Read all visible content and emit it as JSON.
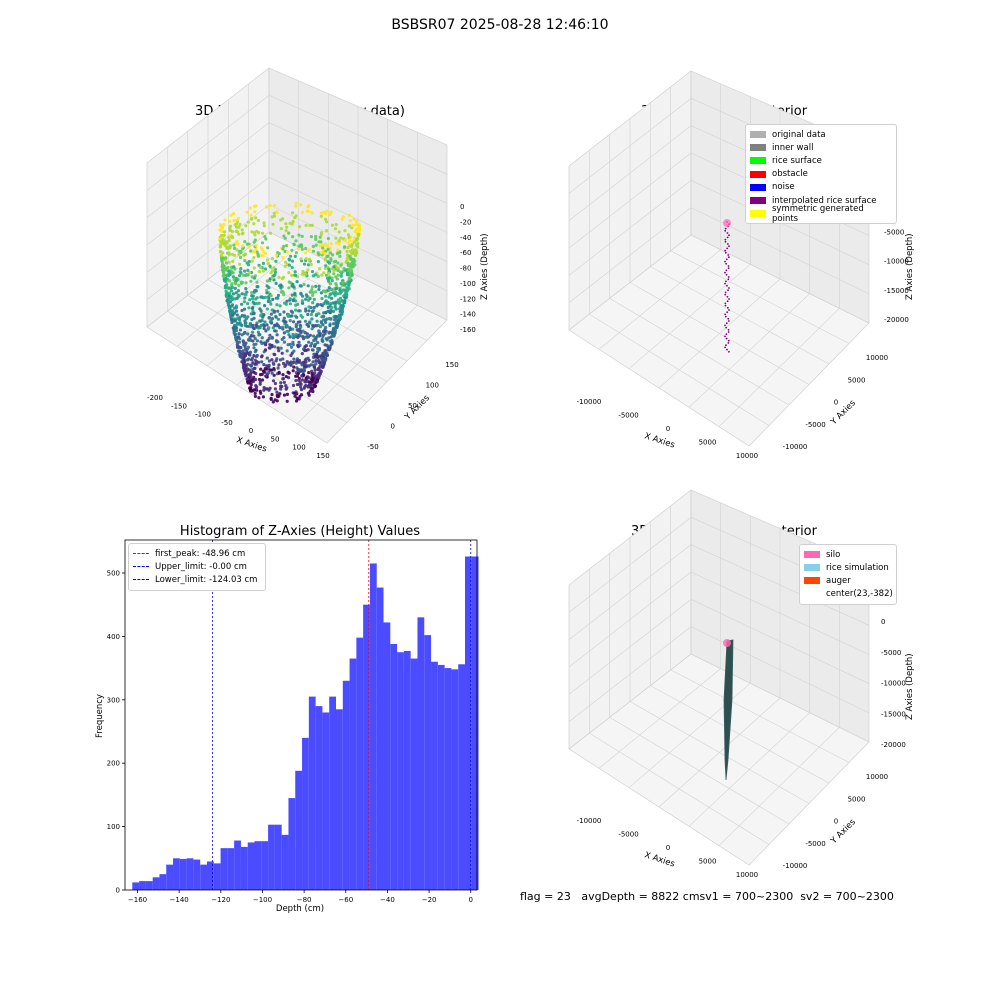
{
  "suptitle": "BSBSR07 2025-08-28 12:46:10",
  "panels": {
    "raw": {
      "title": "3D Plot of Silo Interior(row data)",
      "x_label": "X Axies",
      "y_label": "Y Axies",
      "z_label": "Z Axies (Depth)",
      "x_ticks": [
        "-200",
        "-150",
        "-100",
        "-50",
        "0",
        "50",
        "100",
        "150"
      ],
      "y_ticks": [
        "150",
        "100",
        "50",
        "0",
        "-50"
      ],
      "z_ticks": [
        "0",
        "-20",
        "-40",
        "-60",
        "-80",
        "-100",
        "-120",
        "-140",
        "-160"
      ]
    },
    "classify": {
      "title": "3D classify of Silo Interior",
      "x_label": "X Axies",
      "y_label": "Y Axies",
      "z_label": "Z Axies (Depth)",
      "x_ticks": [
        "-10000",
        "-5000",
        "0",
        "5000",
        "10000"
      ],
      "y_ticks": [
        "10000",
        "5000",
        "0",
        "-5000",
        "-10000"
      ],
      "z_ticks": [
        "0",
        "-5000",
        "-10000",
        "-15000",
        "-20000"
      ],
      "legend": [
        {
          "label": "original data",
          "color": "#b0b0b0"
        },
        {
          "label": "inner wall",
          "color": "#808080"
        },
        {
          "label": "rice surface",
          "color": "#00ff00"
        },
        {
          "label": "obstacle",
          "color": "#ff0000"
        },
        {
          "label": "noise",
          "color": "#0000ff"
        },
        {
          "label": "interpolated rice surface",
          "color": "#800080"
        },
        {
          "label": "symmetric generated points",
          "color": "#ffff00"
        }
      ]
    },
    "simulation": {
      "title": "3D simulation of Silo Interior",
      "x_label": "X Axies",
      "y_label": "Y Axies",
      "z_label": "Z Axies (Depth)",
      "x_ticks": [
        "-10000",
        "-5000",
        "0",
        "5000",
        "10000"
      ],
      "y_ticks": [
        "10000",
        "5000",
        "0",
        "-5000",
        "-10000"
      ],
      "z_ticks": [
        "0",
        "-5000",
        "-10000",
        "-15000",
        "-20000"
      ],
      "legend": [
        {
          "label": "silo",
          "color": "#ff69b4"
        },
        {
          "label": "rice simulation",
          "color": "#87ceeb"
        },
        {
          "label": "auger",
          "color": "#ff4500"
        },
        {
          "label": "center(23,-382)",
          "color": ""
        }
      ]
    }
  },
  "status": {
    "text": "flag = 23   avgDepth = 8822 cmsv1 = 700~2300  sv2 = 700~2300"
  },
  "chart_data": [
    {
      "type": "scatter",
      "title": "3D Plot of Silo Interior(row data)",
      "xlabel": "X Axies",
      "ylabel": "Y Axies",
      "zlabel": "Z Axies (Depth)",
      "xlim": [
        -200,
        150
      ],
      "ylim": [
        -50,
        150
      ],
      "zlim": [
        -160,
        0
      ],
      "colormap": "viridis"
    },
    {
      "type": "scatter",
      "title": "3D classify of Silo Interior",
      "xlabel": "X Axies",
      "ylabel": "Y Axies",
      "zlabel": "Z Axies (Depth)",
      "xlim": [
        -10000,
        10000
      ],
      "ylim": [
        -10000,
        10000
      ],
      "zlim": [
        -20000,
        0
      ],
      "legend_position": "top-right",
      "series": [
        {
          "name": "original data"
        },
        {
          "name": "inner wall"
        },
        {
          "name": "rice surface"
        },
        {
          "name": "obstacle"
        },
        {
          "name": "noise"
        },
        {
          "name": "interpolated rice surface"
        },
        {
          "name": "symmetric generated points"
        }
      ]
    },
    {
      "type": "bar",
      "title": "Histogram of Z-Axies (Height) Values",
      "xlabel": "Depth (cm)",
      "ylabel": "Frequency",
      "xlim": [
        -166,
        3
      ],
      "ylim": [
        0,
        552
      ],
      "x_ticks": [
        -160,
        -140,
        -120,
        -100,
        -80,
        -60,
        -40,
        -20,
        0
      ],
      "y_ticks": [
        0,
        100,
        200,
        300,
        400,
        500
      ],
      "bin_start": -162.5,
      "bin_width": 3.26,
      "values": [
        12,
        14,
        14,
        20,
        25,
        40,
        50,
        49,
        50,
        48,
        40,
        45,
        42,
        66,
        66,
        78,
        68,
        75,
        77,
        77,
        103,
        103,
        87,
        145,
        188,
        240,
        305,
        290,
        280,
        305,
        285,
        330,
        365,
        398,
        450,
        515,
        477,
        422,
        388,
        375,
        377,
        365,
        430,
        402,
        360,
        355,
        350,
        348,
        356,
        526,
        526
      ],
      "bar_color": "#4b4bff",
      "vlines": [
        {
          "label": "first_peak: -48.96 cm",
          "x": -48.96,
          "color": "#ff0000"
        },
        {
          "label": "Upper_limit: -0.00 cm",
          "x": 0.0,
          "color": "#0000ff"
        },
        {
          "label": "Lower_limit: -124.03 cm",
          "x": -124.03,
          "color": "#0000ff"
        }
      ],
      "legend_position": "top-left"
    },
    {
      "type": "area",
      "title": "3D simulation of Silo Interior",
      "xlabel": "X Axies",
      "ylabel": "Y Axies",
      "zlabel": "Z Axies (Depth)",
      "xlim": [
        -10000,
        10000
      ],
      "ylim": [
        -10000,
        10000
      ],
      "zlim": [
        -20000,
        0
      ],
      "legend_position": "top-right",
      "series": [
        {
          "name": "silo"
        },
        {
          "name": "rice simulation"
        },
        {
          "name": "auger"
        },
        {
          "name": "center(23,-382)"
        }
      ]
    }
  ]
}
